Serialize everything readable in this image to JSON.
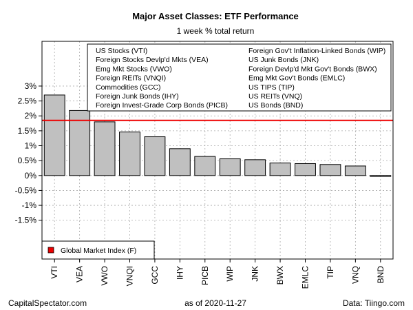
{
  "chart_data": {
    "type": "bar",
    "title": "Major Asset Classes: ETF Performance",
    "subtitle": "1 week % total return",
    "categories": [
      "VTI",
      "VEA",
      "VWO",
      "VNQI",
      "GCC",
      "IHY",
      "PICB",
      "WIP",
      "JNK",
      "BWX",
      "EMLC",
      "TIP",
      "VNQ",
      "BND"
    ],
    "values": [
      2.7,
      2.18,
      1.8,
      1.46,
      1.3,
      0.9,
      0.64,
      0.56,
      0.53,
      0.42,
      0.4,
      0.37,
      0.32,
      -0.03
    ],
    "ylim": [
      -2.8,
      4.5
    ],
    "yticks": [
      3,
      2.5,
      2,
      1.5,
      1,
      0.5,
      0,
      -0.5,
      -1,
      -1.5
    ],
    "ytick_labels": [
      "3%",
      "2.5%",
      "2%",
      "1.5%",
      "1%",
      "0.5%",
      "0%",
      "-0.5%",
      "-1%",
      "-1.5%"
    ],
    "reference_line": {
      "value": 1.85,
      "color": "#ee0000",
      "label": "Global Market Index (F)"
    },
    "bar_color": "#c0c0c0",
    "grid": true,
    "legend_placement": "top-right",
    "legend_left": [
      "US Stocks (VTI)",
      "Foreign Stocks Devlp'd Mkts (VEA)",
      "Emg Mkt Stocks (VWO)",
      "Foreign REITs (VNQI)",
      "Commodities (GCC)",
      "Foreign Junk Bonds (IHY)",
      "Foreign Invest-Grade Corp Bonds (PICB)"
    ],
    "legend_right": [
      "Foreign Gov't Inflation-Linked Bonds (WIP)",
      "US Junk Bonds (JNK)",
      "Foreign Devlp'd Mkt Gov't Bonds (BWX)",
      "Emg Mkt Gov't Bonds (EMLC)",
      "US TIPS (TIP)",
      "US REITs (VNQ)",
      "US Bonds (BND)"
    ]
  },
  "footer": {
    "left": "CapitalSpectator.com",
    "center": "as of   2020-11-27",
    "right": "Data: Tiingo.com"
  }
}
